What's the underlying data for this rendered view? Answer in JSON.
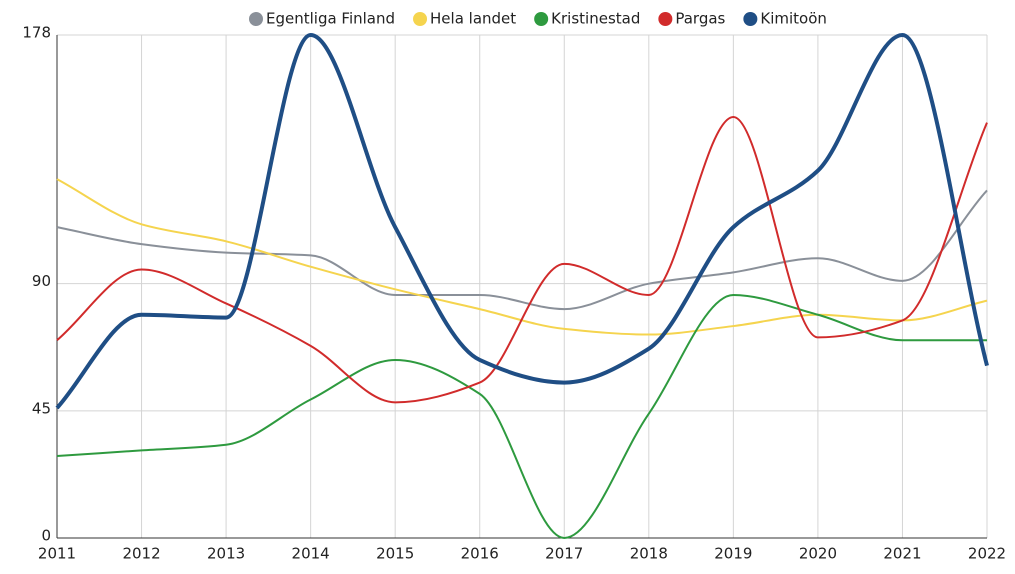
{
  "chart_data": {
    "type": "line",
    "x": [
      2011,
      2012,
      2013,
      2014,
      2015,
      2016,
      2017,
      2018,
      2019,
      2020,
      2021,
      2022
    ],
    "xlim": [
      2011,
      2022
    ],
    "xticks": [
      2011,
      2012,
      2013,
      2014,
      2015,
      2016,
      2017,
      2018,
      2019,
      2020,
      2021,
      2022
    ],
    "ylim": [
      0,
      178
    ],
    "yticks": [
      0,
      45,
      90,
      178
    ],
    "grid": true,
    "legend": "top",
    "series": [
      {
        "name": "Egentliga Finland",
        "color": "#8a9099",
        "values": [
          110,
          104,
          101,
          100,
          86,
          86,
          81,
          90,
          94,
          99,
          91,
          123
        ]
      },
      {
        "name": "Hela landet",
        "color": "#f5d44e",
        "values": [
          127,
          111,
          105,
          96,
          88,
          81,
          74,
          72,
          75,
          79,
          77,
          84
        ]
      },
      {
        "name": "Kristinestad",
        "color": "#2e9a3f",
        "values": [
          29,
          31,
          33,
          49,
          63,
          51,
          0,
          44,
          86,
          79,
          70,
          70
        ]
      },
      {
        "name": "Pargas",
        "color": "#d12b2b",
        "values": [
          70,
          95,
          83,
          68,
          48,
          55,
          97,
          86,
          149,
          71,
          77,
          147
        ]
      },
      {
        "name": "Kimitoön",
        "color": "#1f4e85",
        "values": [
          46,
          79,
          78,
          178,
          110,
          63,
          55,
          67,
          110,
          130,
          178,
          61
        ]
      }
    ]
  }
}
